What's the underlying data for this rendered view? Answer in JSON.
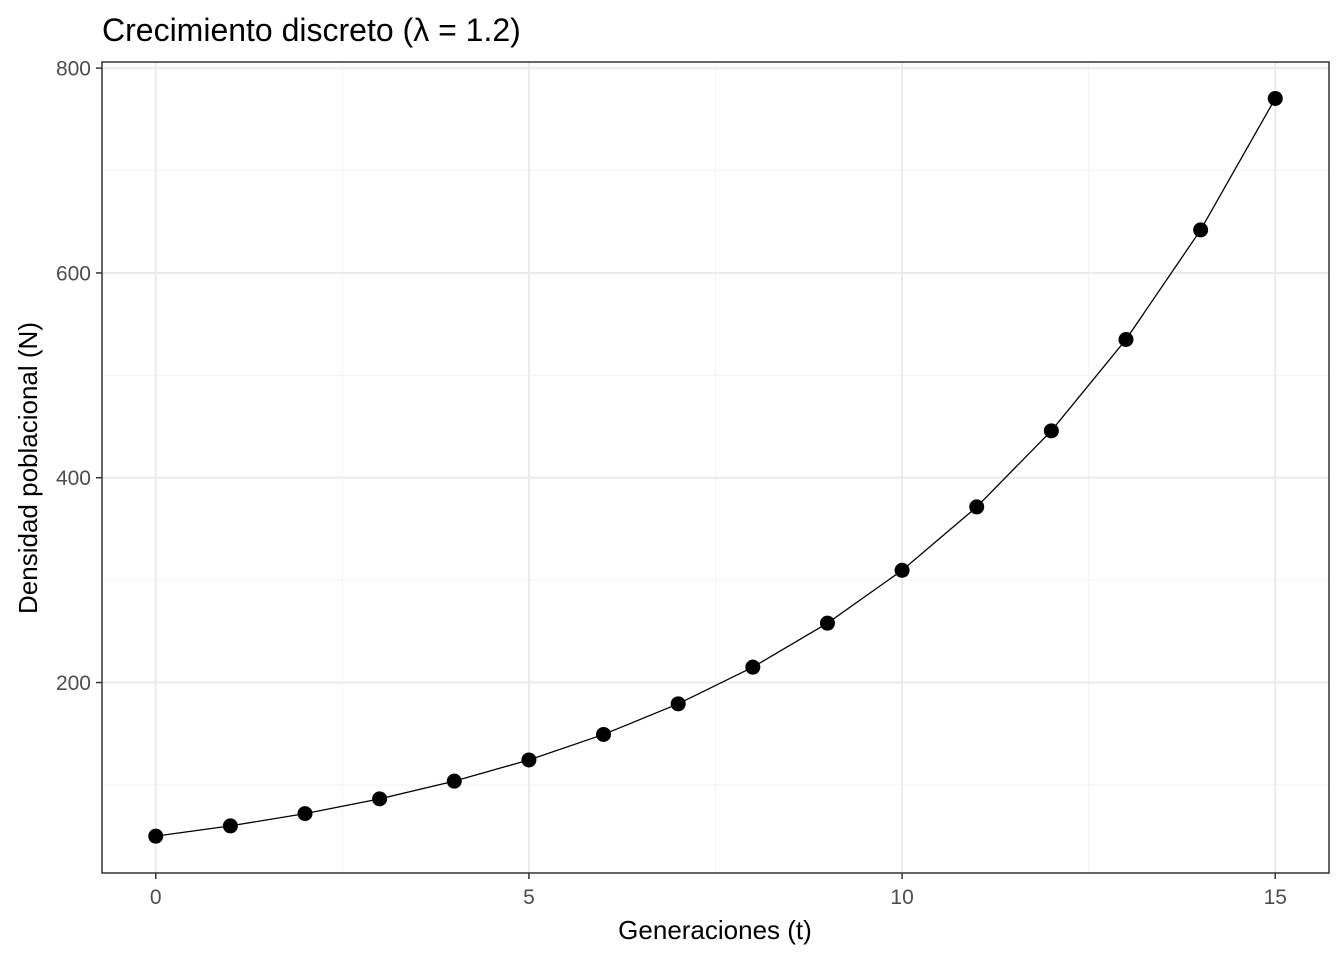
{
  "chart_data": {
    "type": "line",
    "title": "Crecimiento discreto (λ = 1.2)",
    "xlabel": "Generaciones (t)",
    "ylabel": "Densidad poblacional (N)",
    "x": [
      0,
      1,
      2,
      3,
      4,
      5,
      6,
      7,
      8,
      9,
      10,
      11,
      12,
      13,
      14,
      15
    ],
    "series": [
      {
        "values": [
          50,
          60,
          72,
          86.4,
          103.7,
          124.4,
          149.3,
          179.2,
          215,
          258,
          309.6,
          371.5,
          445.8,
          535,
          642,
          770.4
        ]
      }
    ],
    "xlim": [
      -0.72,
      15.72
    ],
    "ylim": [
      14,
      806
    ],
    "x_ticks": [
      0,
      5,
      10,
      15
    ],
    "x_tick_labels": [
      "0",
      "5",
      "10",
      "15"
    ],
    "y_ticks": [
      200,
      400,
      600,
      800
    ],
    "y_tick_labels": [
      "200",
      "400",
      "600",
      "800"
    ],
    "x_minor_ticks": [
      2.5,
      7.5,
      12.5
    ],
    "y_minor_ticks": [
      100,
      300,
      500,
      700
    ],
    "grid": true,
    "markers": true,
    "line_color": "#000000",
    "point_color": "#000000",
    "grid_color": "#ebebeb",
    "border_color": "#333333",
    "tick_label_color": "#4d4d4d"
  }
}
